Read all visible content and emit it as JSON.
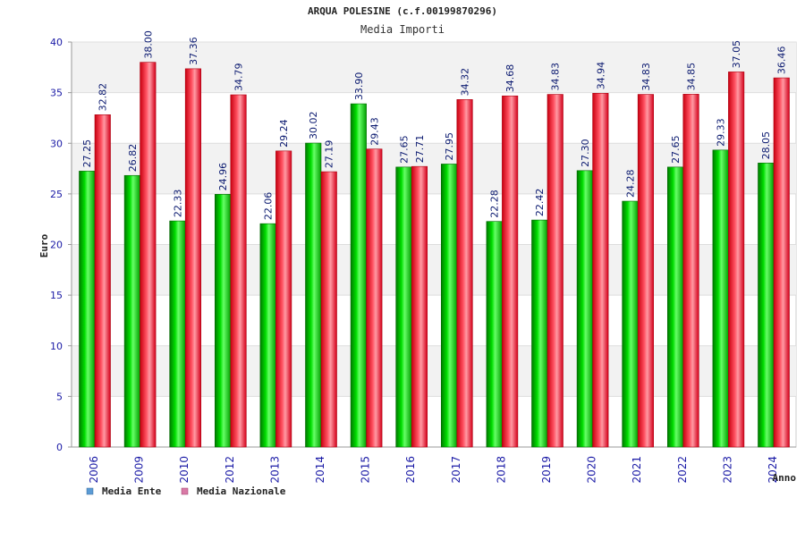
{
  "chart_data": {
    "type": "bar",
    "title": "ARQUA POLESINE (c.f.00199870296)",
    "subtitle": "Media Importi",
    "xlabel": "Anno",
    "ylabel": "Euro",
    "ylim": [
      0,
      40
    ],
    "yticks": [
      0,
      5,
      10,
      15,
      20,
      25,
      30,
      35,
      40
    ],
    "grid": true,
    "legend_position": "bottom-left",
    "categories": [
      "2006",
      "2009",
      "2010",
      "2012",
      "2013",
      "2014",
      "2015",
      "2016",
      "2017",
      "2018",
      "2019",
      "2020",
      "2021",
      "2022",
      "2023",
      "2024"
    ],
    "series": [
      {
        "name": "Media Ente",
        "color": "#00cc00",
        "legend_color": "#5b9bd5",
        "values": [
          27.25,
          26.82,
          22.33,
          24.96,
          22.06,
          30.02,
          33.9,
          27.65,
          27.95,
          22.28,
          22.42,
          27.3,
          24.28,
          27.65,
          29.33,
          28.05
        ],
        "labels": [
          "27.25",
          "26.82",
          "22.33",
          "24.96",
          "22.06",
          "30.02",
          "33.90",
          "27.65",
          "27.95",
          "22.28",
          "22.42",
          "27.30",
          "24.28",
          "27.65",
          "29.33",
          "28.05"
        ]
      },
      {
        "name": "Media Nazionale",
        "color": "#ee1c24",
        "legend_color": "#d97aa6",
        "values": [
          32.82,
          38.0,
          37.36,
          34.79,
          29.24,
          27.19,
          29.43,
          27.71,
          34.32,
          34.68,
          34.83,
          34.94,
          34.83,
          34.85,
          37.05,
          36.46
        ],
        "labels": [
          "32.82",
          "38.00",
          "37.36",
          "34.79",
          "29.24",
          "27.19",
          "29.43",
          "27.71",
          "34.32",
          "34.68",
          "34.83",
          "34.94",
          "34.83",
          "34.85",
          "37.05",
          "36.46"
        ]
      }
    ]
  }
}
